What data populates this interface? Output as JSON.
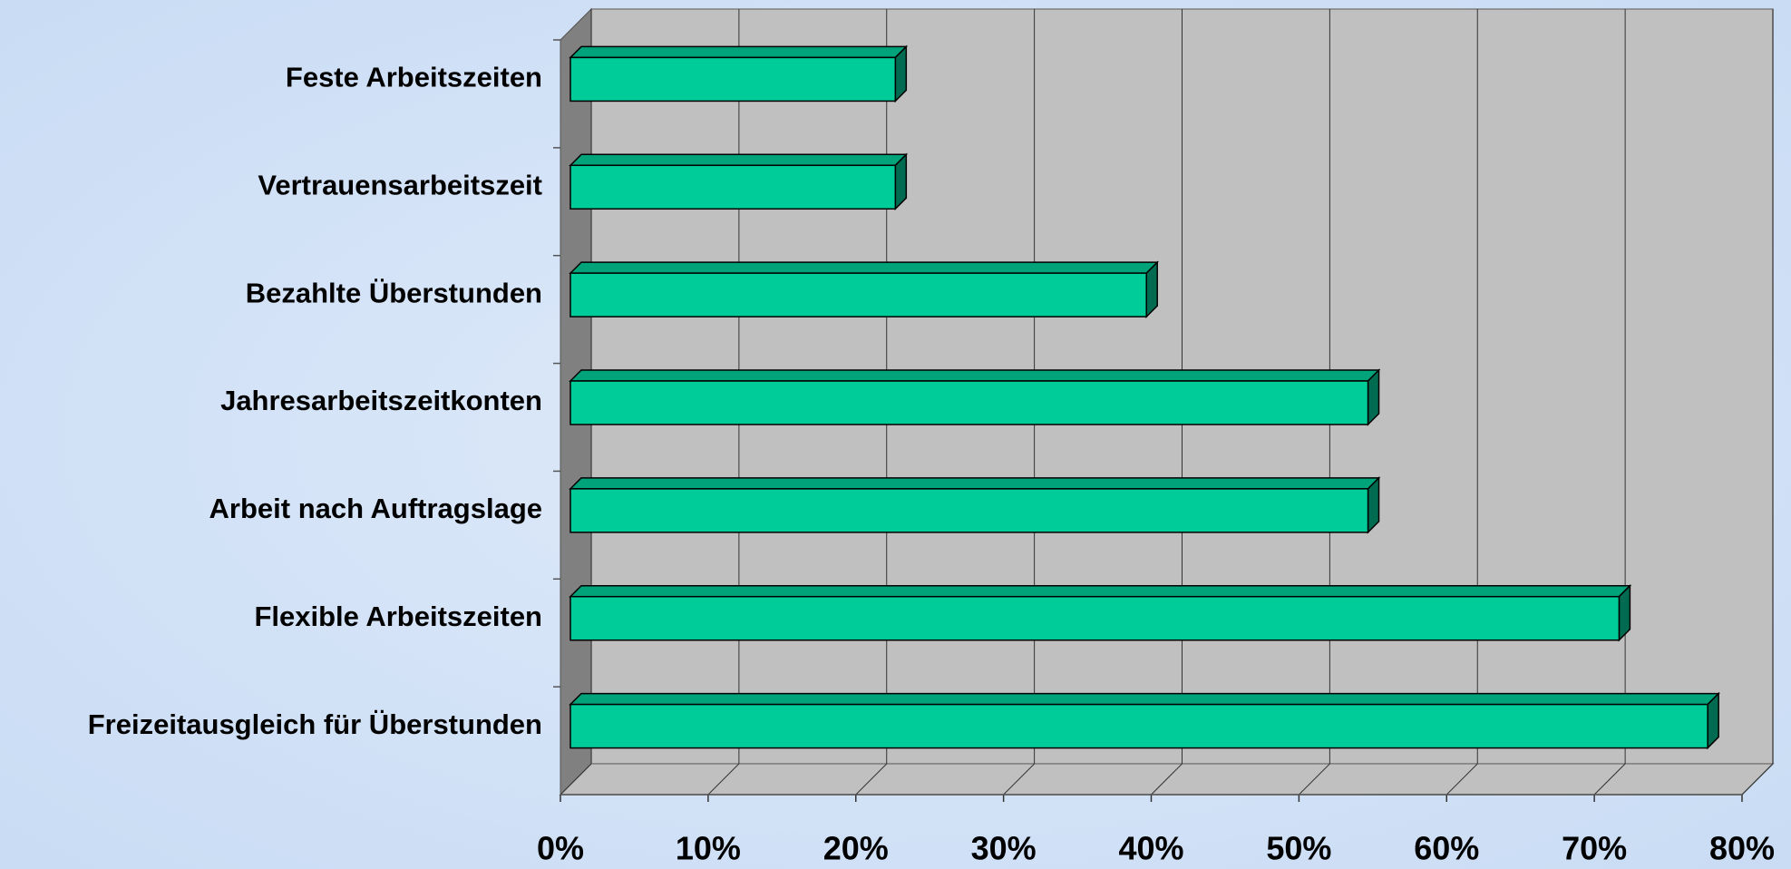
{
  "chart_data": {
    "type": "bar3d_horizontal",
    "categories": [
      "Feste Arbeitszeiten",
      "Vertrauensarbeitszeit",
      "Bezahlte Überstunden",
      "Jahresarbeitszeitkonten",
      "Arbeit nach Auftragslage",
      "Flexible Arbeitszeiten",
      "Freizeitausgleich für Überstunden"
    ],
    "values": [
      22,
      22,
      39,
      54,
      54,
      71,
      77
    ],
    "color": "#00cc99",
    "xlim": [
      0,
      80
    ],
    "xticks": [
      {
        "value": 0,
        "label": "0%"
      },
      {
        "value": 10,
        "label": "10%"
      },
      {
        "value": 20,
        "label": "20%"
      },
      {
        "value": 30,
        "label": "30%"
      },
      {
        "value": 40,
        "label": "40%"
      },
      {
        "value": 50,
        "label": "50%"
      },
      {
        "value": 60,
        "label": "60%"
      },
      {
        "value": 70,
        "label": "70%"
      },
      {
        "value": 80,
        "label": "80%"
      }
    ],
    "grid": true
  }
}
